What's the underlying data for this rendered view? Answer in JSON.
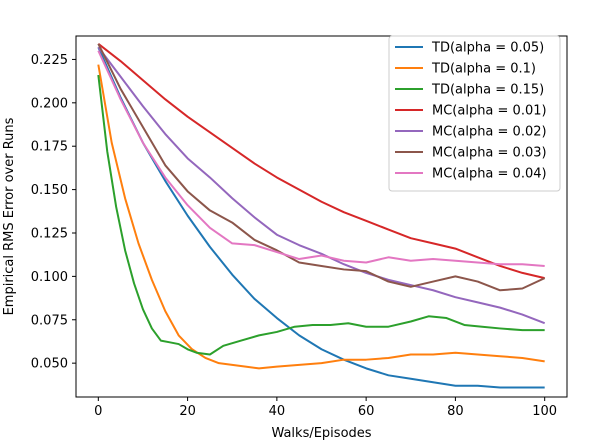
{
  "chart_data": {
    "type": "line",
    "title": "",
    "xlabel": "Walks/Episodes",
    "ylabel": "Empirical RMS Error over Runs",
    "xlim": [
      -5,
      105
    ],
    "ylim": [
      0.0305,
      0.2385
    ],
    "xticks": [
      0,
      20,
      40,
      60,
      80,
      100
    ],
    "yticks": [
      0.05,
      0.075,
      0.1,
      0.125,
      0.15,
      0.175,
      0.2,
      0.225
    ],
    "ytick_labels": [
      "0.050",
      "0.075",
      "0.100",
      "0.125",
      "0.150",
      "0.175",
      "0.200",
      "0.225"
    ],
    "grid": false,
    "legend_position": "top-right",
    "series": [
      {
        "name": "TD(alpha = 0.05)",
        "color": "#1f77b4",
        "x": [
          0,
          5,
          10,
          15,
          20,
          25,
          30,
          35,
          40,
          45,
          50,
          55,
          60,
          65,
          70,
          75,
          80,
          85,
          90,
          95,
          100
        ],
        "y": [
          0.232,
          0.203,
          0.177,
          0.155,
          0.135,
          0.117,
          0.101,
          0.087,
          0.076,
          0.066,
          0.058,
          0.052,
          0.047,
          0.043,
          0.041,
          0.039,
          0.037,
          0.037,
          0.036,
          0.036,
          0.036
        ]
      },
      {
        "name": "TD(alpha = 0.1)",
        "color": "#ff7f0e",
        "x": [
          0,
          3,
          6,
          9,
          12,
          15,
          18,
          21,
          24,
          27,
          30,
          33,
          36,
          40,
          45,
          50,
          55,
          60,
          65,
          70,
          75,
          80,
          85,
          90,
          95,
          100
        ],
        "y": [
          0.222,
          0.177,
          0.145,
          0.119,
          0.098,
          0.08,
          0.066,
          0.058,
          0.053,
          0.05,
          0.049,
          0.048,
          0.047,
          0.048,
          0.049,
          0.05,
          0.052,
          0.052,
          0.053,
          0.055,
          0.055,
          0.056,
          0.055,
          0.054,
          0.053,
          0.051
        ]
      },
      {
        "name": "TD(alpha = 0.15)",
        "color": "#2ca02c",
        "x": [
          0,
          2,
          4,
          6,
          8,
          10,
          12,
          14,
          16,
          18,
          20,
          22,
          25,
          28,
          32,
          36,
          40,
          44,
          48,
          52,
          56,
          60,
          65,
          70,
          74,
          78,
          82,
          86,
          90,
          95,
          100
        ],
        "y": [
          0.216,
          0.172,
          0.14,
          0.115,
          0.096,
          0.081,
          0.07,
          0.063,
          0.062,
          0.061,
          0.058,
          0.056,
          0.055,
          0.06,
          0.063,
          0.066,
          0.068,
          0.071,
          0.072,
          0.072,
          0.073,
          0.071,
          0.071,
          0.074,
          0.077,
          0.076,
          0.072,
          0.071,
          0.07,
          0.069,
          0.069
        ]
      },
      {
        "name": "MC(alpha = 0.01)",
        "color": "#d62728",
        "x": [
          0,
          5,
          10,
          15,
          20,
          25,
          30,
          35,
          40,
          45,
          50,
          55,
          60,
          65,
          70,
          75,
          80,
          85,
          90,
          95,
          100
        ],
        "y": [
          0.234,
          0.224,
          0.213,
          0.202,
          0.192,
          0.183,
          0.174,
          0.165,
          0.157,
          0.15,
          0.143,
          0.137,
          0.132,
          0.127,
          0.122,
          0.119,
          0.116,
          0.111,
          0.106,
          0.102,
          0.099
        ]
      },
      {
        "name": "MC(alpha = 0.02)",
        "color": "#9467bd",
        "x": [
          0,
          5,
          10,
          15,
          20,
          25,
          30,
          35,
          40,
          45,
          50,
          55,
          60,
          65,
          70,
          75,
          80,
          85,
          90,
          95,
          100
        ],
        "y": [
          0.232,
          0.215,
          0.198,
          0.182,
          0.168,
          0.157,
          0.145,
          0.134,
          0.124,
          0.118,
          0.113,
          0.107,
          0.102,
          0.098,
          0.095,
          0.092,
          0.088,
          0.085,
          0.082,
          0.078,
          0.073
        ]
      },
      {
        "name": "MC(alpha = 0.03)",
        "color": "#8c564b",
        "x": [
          0,
          5,
          10,
          15,
          20,
          25,
          30,
          35,
          40,
          45,
          50,
          55,
          60,
          65,
          70,
          75,
          80,
          85,
          90,
          95,
          100
        ],
        "y": [
          0.234,
          0.208,
          0.186,
          0.164,
          0.149,
          0.138,
          0.131,
          0.121,
          0.115,
          0.108,
          0.106,
          0.104,
          0.103,
          0.097,
          0.094,
          0.097,
          0.1,
          0.097,
          0.092,
          0.093,
          0.099
        ]
      },
      {
        "name": "MC(alpha = 0.04)",
        "color": "#e377c2",
        "x": [
          0,
          5,
          10,
          15,
          20,
          25,
          30,
          35,
          40,
          45,
          50,
          55,
          60,
          65,
          70,
          75,
          80,
          85,
          90,
          95,
          100
        ],
        "y": [
          0.23,
          0.202,
          0.177,
          0.157,
          0.141,
          0.128,
          0.119,
          0.118,
          0.114,
          0.11,
          0.112,
          0.109,
          0.108,
          0.111,
          0.109,
          0.11,
          0.109,
          0.108,
          0.107,
          0.107,
          0.106
        ]
      }
    ]
  }
}
